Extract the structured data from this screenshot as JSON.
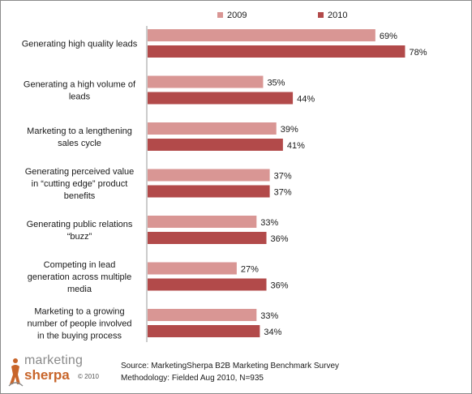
{
  "chart_data": {
    "type": "bar",
    "orientation": "horizontal",
    "categories": [
      [
        "Generating high quality leads"
      ],
      [
        "Generating a high volume of",
        "leads"
      ],
      [
        "Marketing to a lengthening",
        "sales cycle"
      ],
      [
        "Generating perceived value",
        "in “cutting edge” product",
        "benefits"
      ],
      [
        "Generating public relations",
        "“buzz”"
      ],
      [
        "Competing in lead",
        "generation across multiple",
        "media"
      ],
      [
        "Marketing to a growing",
        "number of people involved",
        "in the buying process"
      ]
    ],
    "series": [
      {
        "name": "2009",
        "color": "#d99694",
        "values": [
          69,
          35,
          39,
          37,
          33,
          27,
          33
        ]
      },
      {
        "name": "2010",
        "color": "#b24a4a",
        "values": [
          78,
          44,
          41,
          37,
          36,
          36,
          34
        ]
      }
    ],
    "value_suffix": "%",
    "xlim": [
      0,
      100
    ],
    "grid": false,
    "legend": "top"
  },
  "source": {
    "line1": "Source: MarketingSherpa B2B Marketing Benchmark Survey",
    "line2": "Methodology: Fielded Aug 2010, N=935"
  },
  "logo": {
    "word1": "marketing",
    "word2": "sherpa",
    "copyright": "© 2010"
  }
}
